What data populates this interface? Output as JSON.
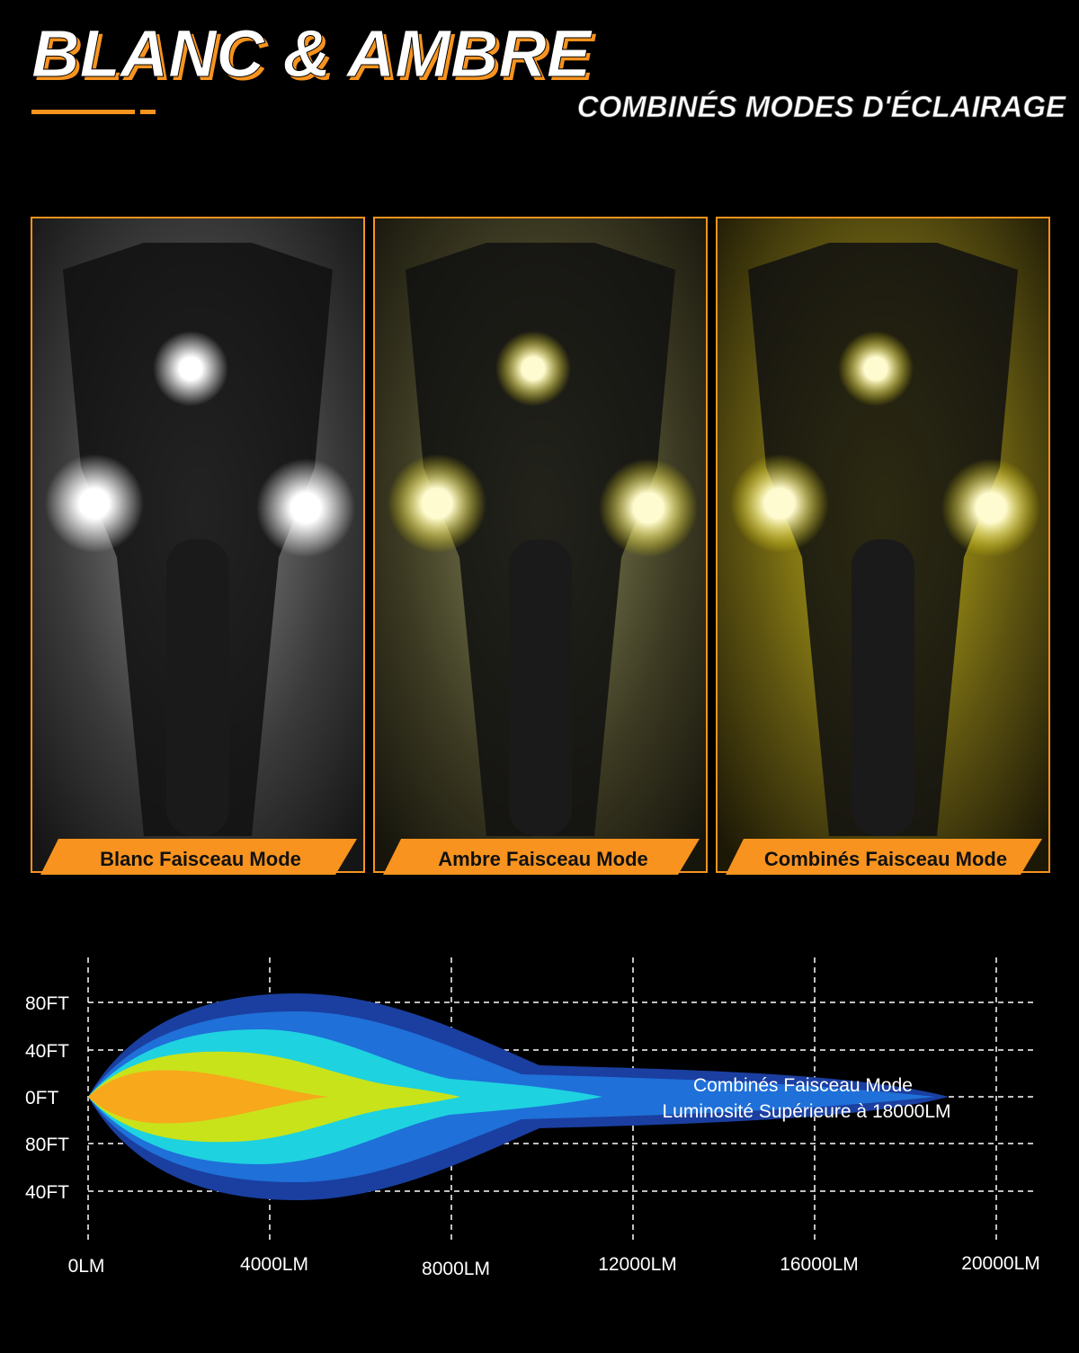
{
  "header": {
    "title": "BLANC & AMBRE",
    "subtitle": "COMBINÉS MODES D'ÉCLAIRAGE"
  },
  "panels": [
    {
      "label": "Blanc Faisceau Mode"
    },
    {
      "label": "Ambre Faisceau Mode"
    },
    {
      "label": "Combinés Faisceau Mode"
    }
  ],
  "beam_diagram": {
    "y_labels": [
      "80FT",
      "40FT",
      "0FT",
      "80FT",
      "40FT"
    ],
    "x_labels": [
      "0LM",
      "4000LM",
      "8000LM",
      "12000LM",
      "16000LM",
      "20000LM"
    ],
    "annotation": [
      "Combinés Faisceau Mode",
      "Luminosité Supérieure à 18000LM"
    ]
  }
}
